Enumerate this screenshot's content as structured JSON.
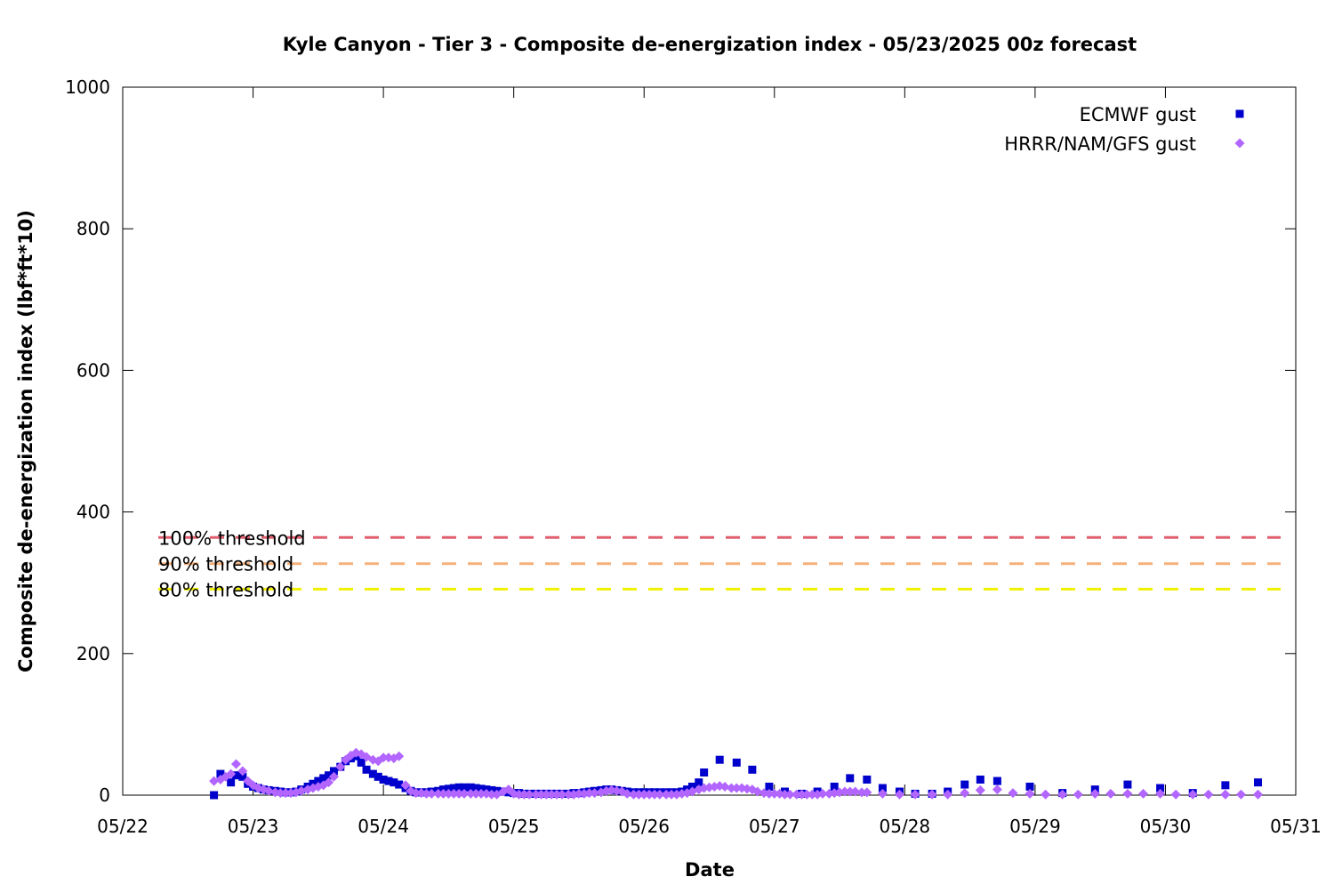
{
  "chart_data": {
    "type": "scatter",
    "title": "Kyle Canyon - Tier 3 - Composite de-energization index - 05/23/2025 00z forecast",
    "xlabel": "Date",
    "ylabel": "Composite de-energization index (lbf*ft*10)",
    "x_unit": "days since 05/22 00z",
    "xlim": [
      0,
      9
    ],
    "ylim": [
      0,
      1000
    ],
    "xticks": [
      {
        "value": 0,
        "label": "05/22"
      },
      {
        "value": 1,
        "label": "05/23"
      },
      {
        "value": 2,
        "label": "05/24"
      },
      {
        "value": 3,
        "label": "05/25"
      },
      {
        "value": 4,
        "label": "05/26"
      },
      {
        "value": 5,
        "label": "05/27"
      },
      {
        "value": 6,
        "label": "05/28"
      },
      {
        "value": 7,
        "label": "05/29"
      },
      {
        "value": 8,
        "label": "05/30"
      },
      {
        "value": 9,
        "label": "05/31"
      }
    ],
    "yticks": [
      {
        "value": 0,
        "label": "0"
      },
      {
        "value": 200,
        "label": "200"
      },
      {
        "value": 400,
        "label": "400"
      },
      {
        "value": 600,
        "label": "600"
      },
      {
        "value": 800,
        "label": "800"
      },
      {
        "value": 1000,
        "label": "1000"
      }
    ],
    "legend_position": "top-right",
    "thresholds": [
      {
        "name": "100% threshold",
        "value": 364,
        "color": "#e06070"
      },
      {
        "name": "90% threshold",
        "value": 327,
        "color": "#f5b07a"
      },
      {
        "name": "80% threshold",
        "value": 291,
        "color": "#f0f000"
      }
    ],
    "series": [
      {
        "name": "ECMWF gust",
        "marker": "square",
        "color": "#0000cc",
        "points": [
          [
            0.7,
            0
          ],
          [
            0.75,
            30
          ],
          [
            0.83,
            18
          ],
          [
            0.87,
            28
          ],
          [
            0.92,
            26
          ],
          [
            0.96,
            16
          ],
          [
            1.0,
            12
          ],
          [
            1.04,
            10
          ],
          [
            1.08,
            8
          ],
          [
            1.12,
            7
          ],
          [
            1.17,
            6
          ],
          [
            1.21,
            5
          ],
          [
            1.25,
            4
          ],
          [
            1.29,
            4
          ],
          [
            1.33,
            5
          ],
          [
            1.37,
            8
          ],
          [
            1.42,
            12
          ],
          [
            1.46,
            16
          ],
          [
            1.5,
            20
          ],
          [
            1.54,
            24
          ],
          [
            1.58,
            28
          ],
          [
            1.62,
            34
          ],
          [
            1.67,
            40
          ],
          [
            1.71,
            48
          ],
          [
            1.75,
            52
          ],
          [
            1.79,
            55
          ],
          [
            1.83,
            46
          ],
          [
            1.87,
            36
          ],
          [
            1.92,
            30
          ],
          [
            1.96,
            26
          ],
          [
            2.0,
            22
          ],
          [
            2.04,
            20
          ],
          [
            2.08,
            18
          ],
          [
            2.12,
            15
          ],
          [
            2.17,
            10
          ],
          [
            2.21,
            6
          ],
          [
            2.25,
            4
          ],
          [
            2.29,
            4
          ],
          [
            2.33,
            4
          ],
          [
            2.37,
            5
          ],
          [
            2.42,
            6
          ],
          [
            2.46,
            8
          ],
          [
            2.5,
            9
          ],
          [
            2.54,
            10
          ],
          [
            2.58,
            11
          ],
          [
            2.62,
            11
          ],
          [
            2.67,
            11
          ],
          [
            2.71,
            10
          ],
          [
            2.75,
            9
          ],
          [
            2.79,
            8
          ],
          [
            2.83,
            7
          ],
          [
            2.87,
            6
          ],
          [
            2.92,
            5
          ],
          [
            2.96,
            4
          ],
          [
            3.0,
            3
          ],
          [
            3.04,
            3
          ],
          [
            3.08,
            2
          ],
          [
            3.12,
            2
          ],
          [
            3.17,
            2
          ],
          [
            3.21,
            2
          ],
          [
            3.25,
            2
          ],
          [
            3.29,
            2
          ],
          [
            3.33,
            2
          ],
          [
            3.37,
            2
          ],
          [
            3.42,
            2
          ],
          [
            3.46,
            3
          ],
          [
            3.5,
            3
          ],
          [
            3.54,
            4
          ],
          [
            3.58,
            5
          ],
          [
            3.62,
            6
          ],
          [
            3.67,
            7
          ],
          [
            3.71,
            8
          ],
          [
            3.75,
            8
          ],
          [
            3.79,
            7
          ],
          [
            3.83,
            6
          ],
          [
            3.87,
            5
          ],
          [
            3.92,
            4
          ],
          [
            3.96,
            4
          ],
          [
            4.0,
            4
          ],
          [
            4.04,
            4
          ],
          [
            4.08,
            4
          ],
          [
            4.12,
            4
          ],
          [
            4.17,
            4
          ],
          [
            4.21,
            4
          ],
          [
            4.25,
            4
          ],
          [
            4.29,
            5
          ],
          [
            4.33,
            8
          ],
          [
            4.37,
            12
          ],
          [
            4.42,
            18
          ],
          [
            4.46,
            32
          ],
          [
            4.58,
            50
          ],
          [
            4.71,
            46
          ],
          [
            4.83,
            36
          ],
          [
            4.96,
            12
          ],
          [
            5.08,
            5
          ],
          [
            5.21,
            2
          ],
          [
            5.33,
            5
          ],
          [
            5.46,
            12
          ],
          [
            5.58,
            24
          ],
          [
            5.71,
            22
          ],
          [
            5.83,
            10
          ],
          [
            5.96,
            5
          ],
          [
            6.08,
            2
          ],
          [
            6.21,
            2
          ],
          [
            6.33,
            5
          ],
          [
            6.46,
            15
          ],
          [
            6.58,
            22
          ],
          [
            6.71,
            20
          ],
          [
            6.96,
            12
          ],
          [
            7.21,
            3
          ],
          [
            7.46,
            8
          ],
          [
            7.71,
            15
          ],
          [
            7.96,
            10
          ],
          [
            8.21,
            3
          ],
          [
            8.46,
            14
          ],
          [
            8.71,
            18
          ]
        ]
      },
      {
        "name": "HRRR/NAM/GFS gust",
        "marker": "diamond",
        "color": "#b266ff",
        "points": [
          [
            0.7,
            20
          ],
          [
            0.75,
            22
          ],
          [
            0.79,
            26
          ],
          [
            0.83,
            30
          ],
          [
            0.87,
            44
          ],
          [
            0.92,
            34
          ],
          [
            0.96,
            20
          ],
          [
            1.0,
            14
          ],
          [
            1.04,
            10
          ],
          [
            1.08,
            8
          ],
          [
            1.12,
            6
          ],
          [
            1.17,
            4
          ],
          [
            1.21,
            3
          ],
          [
            1.25,
            3
          ],
          [
            1.29,
            3
          ],
          [
            1.33,
            4
          ],
          [
            1.37,
            6
          ],
          [
            1.42,
            8
          ],
          [
            1.46,
            10
          ],
          [
            1.5,
            12
          ],
          [
            1.54,
            14
          ],
          [
            1.58,
            18
          ],
          [
            1.62,
            26
          ],
          [
            1.67,
            40
          ],
          [
            1.71,
            50
          ],
          [
            1.75,
            56
          ],
          [
            1.79,
            60
          ],
          [
            1.83,
            58
          ],
          [
            1.87,
            54
          ],
          [
            1.92,
            50
          ],
          [
            1.96,
            48
          ],
          [
            2.0,
            53
          ],
          [
            2.04,
            53
          ],
          [
            2.08,
            52
          ],
          [
            2.12,
            55
          ],
          [
            2.17,
            14
          ],
          [
            2.21,
            6
          ],
          [
            2.25,
            3
          ],
          [
            2.29,
            3
          ],
          [
            2.33,
            2
          ],
          [
            2.37,
            2
          ],
          [
            2.42,
            2
          ],
          [
            2.46,
            2
          ],
          [
            2.5,
            2
          ],
          [
            2.54,
            2
          ],
          [
            2.58,
            2
          ],
          [
            2.62,
            2
          ],
          [
            2.67,
            2
          ],
          [
            2.71,
            2
          ],
          [
            2.75,
            2
          ],
          [
            2.79,
            2
          ],
          [
            2.83,
            1
          ],
          [
            2.87,
            1
          ],
          [
            2.92,
            5
          ],
          [
            2.96,
            8
          ],
          [
            3.0,
            2
          ],
          [
            3.04,
            1
          ],
          [
            3.08,
            1
          ],
          [
            3.12,
            1
          ],
          [
            3.17,
            1
          ],
          [
            3.21,
            1
          ],
          [
            3.25,
            1
          ],
          [
            3.29,
            1
          ],
          [
            3.33,
            1
          ],
          [
            3.37,
            1
          ],
          [
            3.42,
            1
          ],
          [
            3.46,
            1
          ],
          [
            3.5,
            2
          ],
          [
            3.54,
            2
          ],
          [
            3.58,
            3
          ],
          [
            3.62,
            3
          ],
          [
            3.67,
            4
          ],
          [
            3.71,
            6
          ],
          [
            3.75,
            7
          ],
          [
            3.79,
            6
          ],
          [
            3.83,
            5
          ],
          [
            3.87,
            2
          ],
          [
            3.92,
            1
          ],
          [
            3.96,
            1
          ],
          [
            4.0,
            1
          ],
          [
            4.04,
            1
          ],
          [
            4.08,
            1
          ],
          [
            4.12,
            1
          ],
          [
            4.17,
            1
          ],
          [
            4.21,
            1
          ],
          [
            4.25,
            1
          ],
          [
            4.29,
            2
          ],
          [
            4.33,
            3
          ],
          [
            4.37,
            5
          ],
          [
            4.42,
            8
          ],
          [
            4.46,
            10
          ],
          [
            4.5,
            11
          ],
          [
            4.54,
            12
          ],
          [
            4.58,
            13
          ],
          [
            4.62,
            12
          ],
          [
            4.67,
            10
          ],
          [
            4.71,
            10
          ],
          [
            4.75,
            10
          ],
          [
            4.79,
            9
          ],
          [
            4.83,
            8
          ],
          [
            4.87,
            5
          ],
          [
            4.92,
            3
          ],
          [
            4.96,
            2
          ],
          [
            5.0,
            2
          ],
          [
            5.04,
            2
          ],
          [
            5.08,
            1
          ],
          [
            5.12,
            1
          ],
          [
            5.17,
            1
          ],
          [
            5.21,
            1
          ],
          [
            5.25,
            1
          ],
          [
            5.29,
            1
          ],
          [
            5.33,
            1
          ],
          [
            5.37,
            2
          ],
          [
            5.42,
            2
          ],
          [
            5.46,
            3
          ],
          [
            5.5,
            4
          ],
          [
            5.54,
            5
          ],
          [
            5.58,
            5
          ],
          [
            5.62,
            5
          ],
          [
            5.67,
            4
          ],
          [
            5.71,
            4
          ],
          [
            5.83,
            2
          ],
          [
            5.96,
            1
          ],
          [
            6.08,
            1
          ],
          [
            6.21,
            1
          ],
          [
            6.33,
            1
          ],
          [
            6.46,
            3
          ],
          [
            6.58,
            7
          ],
          [
            6.71,
            8
          ],
          [
            6.83,
            3
          ],
          [
            6.96,
            2
          ],
          [
            7.08,
            1
          ],
          [
            7.21,
            1
          ],
          [
            7.33,
            1
          ],
          [
            7.46,
            2
          ],
          [
            7.58,
            2
          ],
          [
            7.71,
            2
          ],
          [
            7.83,
            2
          ],
          [
            7.96,
            2
          ],
          [
            8.08,
            1
          ],
          [
            8.21,
            1
          ],
          [
            8.33,
            1
          ],
          [
            8.46,
            1
          ],
          [
            8.58,
            1
          ],
          [
            8.71,
            1
          ]
        ]
      }
    ]
  }
}
